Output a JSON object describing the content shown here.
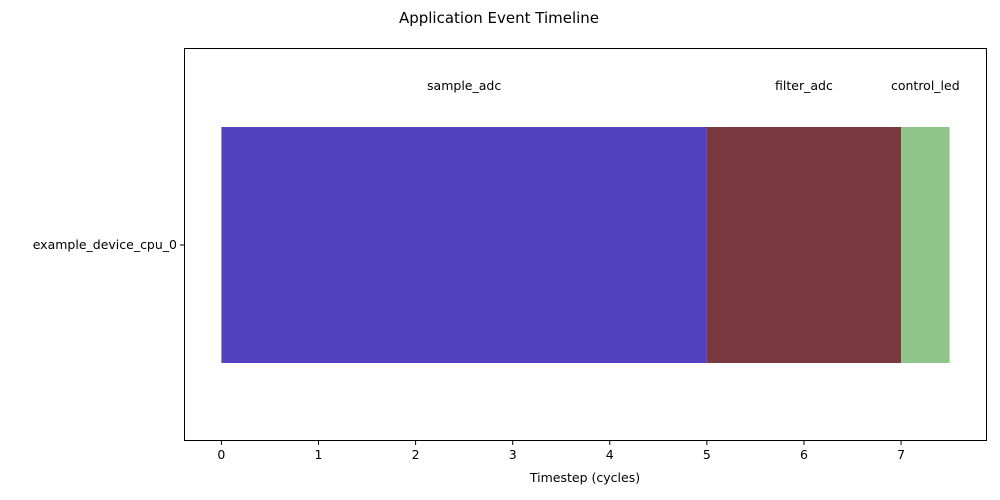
{
  "chart_data": {
    "type": "bar",
    "orientation": "horizontal",
    "title": "Application Event Timeline",
    "xlabel": "Timestep (cycles)",
    "ylabel": "",
    "categories": [
      "example_device_cpu_0"
    ],
    "xlim": [
      -0.375,
      7.875
    ],
    "x_ticks": [
      0,
      1,
      2,
      3,
      4,
      5,
      6,
      7
    ],
    "grid": false,
    "series": [
      {
        "name": "sample_adc",
        "start": 0,
        "end": 5,
        "color": "#5341bf"
      },
      {
        "name": "filter_adc",
        "start": 5,
        "end": 7,
        "color": "#7a393e"
      },
      {
        "name": "control_led",
        "start": 7,
        "end": 7.5,
        "color": "#8fc588"
      }
    ]
  }
}
